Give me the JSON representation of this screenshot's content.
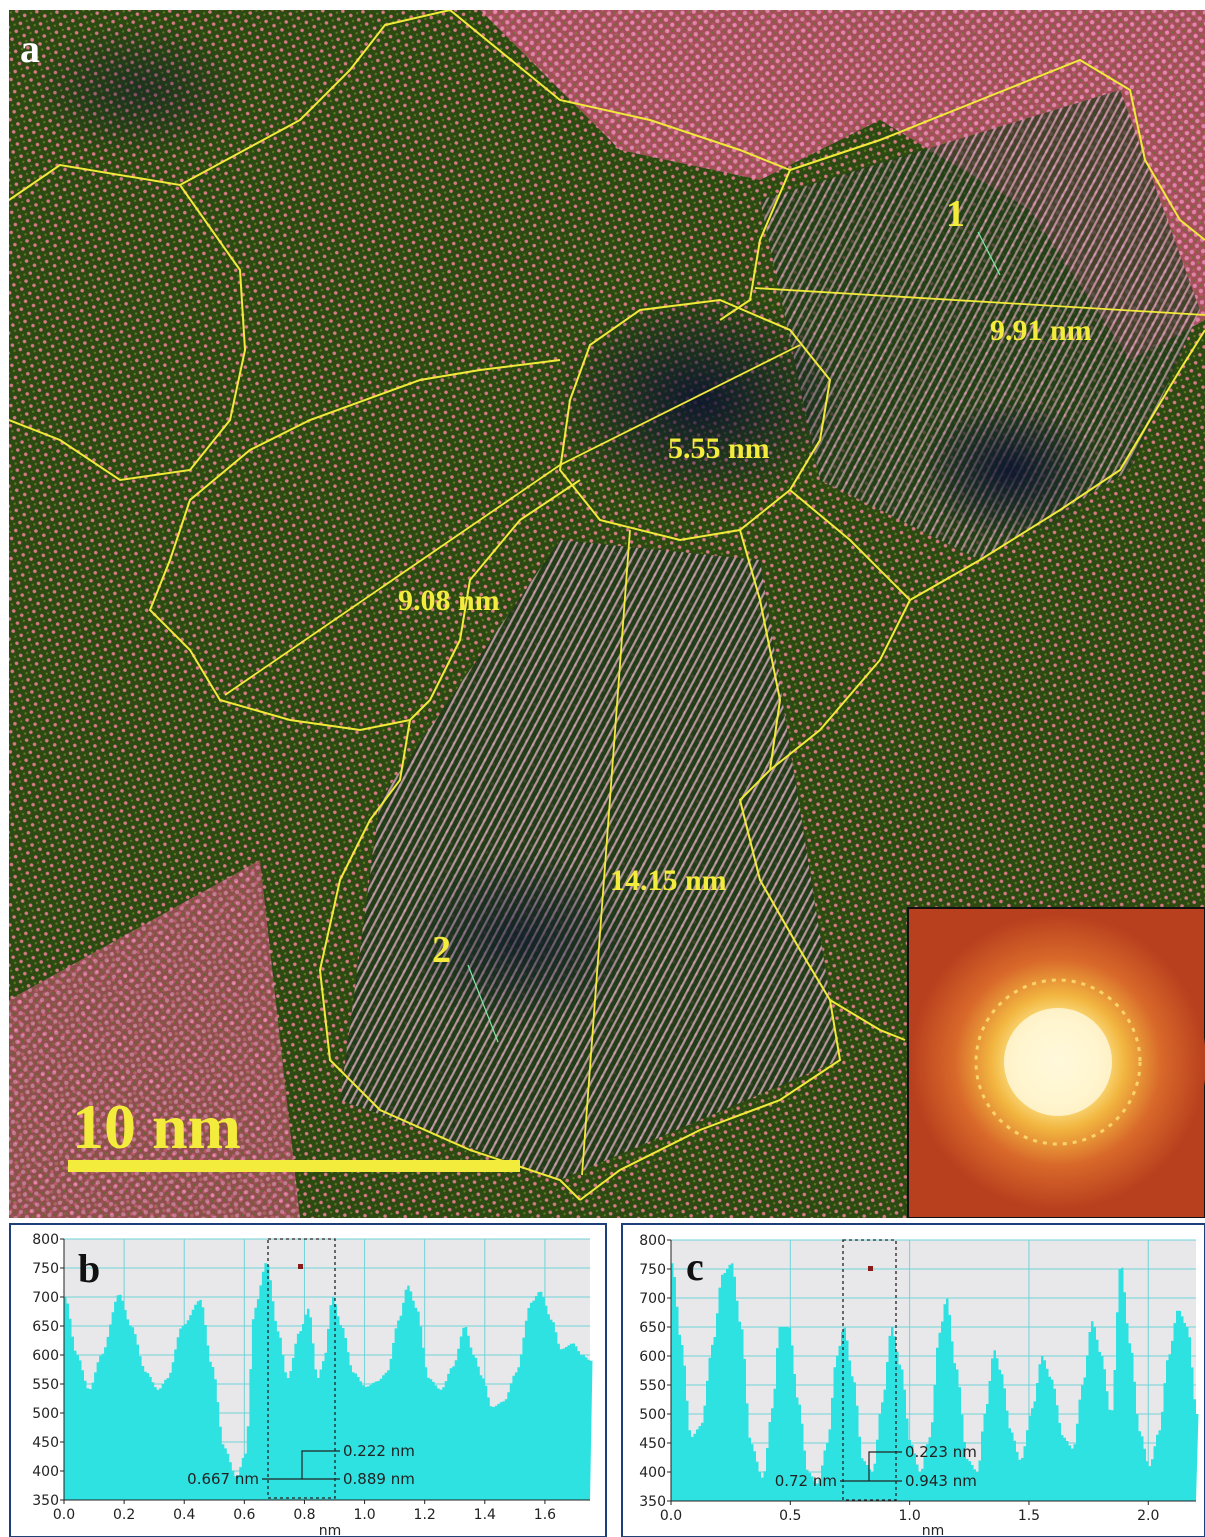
{
  "panel_a": {
    "letter": "a",
    "grains": [
      {
        "label": "1"
      },
      {
        "label": "2"
      }
    ],
    "measurements": [
      "9.91 nm",
      "5.55 nm",
      "9.08 nm",
      "14.15 nm"
    ],
    "scale_bar": "10 nm",
    "colors": {
      "grain_boundary": "#f2ea3a",
      "label": "#f4ec3c",
      "fft_glow": "#fff4b8"
    }
  },
  "chart_data": [
    {
      "type": "area",
      "panel": "b",
      "xlabel": "nm",
      "ylabel": "",
      "xlim": [
        0.0,
        1.75
      ],
      "ylim": [
        350,
        800
      ],
      "x_ticks": [
        "0.0",
        "0.2",
        "0.4",
        "0.6",
        "0.8",
        "1.0",
        "1.2",
        "1.4",
        "1.6"
      ],
      "y_ticks": [
        "800",
        "750",
        "700",
        "650",
        "600",
        "550",
        "500",
        "450",
        "400",
        "350"
      ],
      "series_color": "#2ee2e2",
      "profile": [
        [
          0.0,
          700
        ],
        [
          0.04,
          600
        ],
        [
          0.08,
          540
        ],
        [
          0.12,
          600
        ],
        [
          0.18,
          705
        ],
        [
          0.22,
          650
        ],
        [
          0.27,
          570
        ],
        [
          0.31,
          540
        ],
        [
          0.34,
          560
        ],
        [
          0.39,
          650
        ],
        [
          0.45,
          695
        ],
        [
          0.49,
          580
        ],
        [
          0.53,
          440
        ],
        [
          0.57,
          390
        ],
        [
          0.6,
          430
        ],
        [
          0.63,
          680
        ],
        [
          0.67,
          760
        ],
        [
          0.71,
          640
        ],
        [
          0.74,
          560
        ],
        [
          0.78,
          640
        ],
        [
          0.81,
          680
        ],
        [
          0.84,
          560
        ],
        [
          0.86,
          590
        ],
        [
          0.89,
          700
        ],
        [
          0.92,
          650
        ],
        [
          0.96,
          570
        ],
        [
          1.0,
          545
        ],
        [
          1.04,
          555
        ],
        [
          1.07,
          570
        ],
        [
          1.11,
          660
        ],
        [
          1.14,
          720
        ],
        [
          1.17,
          680
        ],
        [
          1.21,
          560
        ],
        [
          1.25,
          540
        ],
        [
          1.29,
          580
        ],
        [
          1.33,
          650
        ],
        [
          1.36,
          600
        ],
        [
          1.39,
          560
        ],
        [
          1.42,
          510
        ],
        [
          1.46,
          520
        ],
        [
          1.5,
          570
        ],
        [
          1.55,
          690
        ],
        [
          1.58,
          710
        ],
        [
          1.62,
          660
        ],
        [
          1.65,
          610
        ],
        [
          1.69,
          620
        ],
        [
          1.72,
          600
        ],
        [
          1.75,
          590
        ]
      ],
      "markers": [
        {
          "label": "0.222 nm"
        },
        {
          "label": "0.667 nm"
        },
        {
          "label": "0.889 nm"
        }
      ]
    },
    {
      "type": "area",
      "panel": "c",
      "xlabel": "nm",
      "ylabel": "",
      "xlim": [
        0.0,
        2.2
      ],
      "ylim": [
        350,
        800
      ],
      "x_ticks": [
        "0.0",
        "0.5",
        "1.0",
        "1.5",
        "2.0"
      ],
      "y_ticks": [
        "800",
        "750",
        "700",
        "650",
        "600",
        "550",
        "500",
        "450",
        "400",
        "350"
      ],
      "series_color": "#2ee2e2",
      "profile": [
        [
          0.0,
          760
        ],
        [
          0.04,
          620
        ],
        [
          0.08,
          460
        ],
        [
          0.12,
          480
        ],
        [
          0.17,
          620
        ],
        [
          0.21,
          740
        ],
        [
          0.25,
          760
        ],
        [
          0.29,
          650
        ],
        [
          0.33,
          450
        ],
        [
          0.38,
          390
        ],
        [
          0.42,
          510
        ],
        [
          0.45,
          650
        ],
        [
          0.49,
          650
        ],
        [
          0.53,
          520
        ],
        [
          0.57,
          400
        ],
        [
          0.61,
          380
        ],
        [
          0.65,
          450
        ],
        [
          0.69,
          600
        ],
        [
          0.72,
          650
        ],
        [
          0.76,
          560
        ],
        [
          0.8,
          420
        ],
        [
          0.84,
          400
        ],
        [
          0.88,
          520
        ],
        [
          0.92,
          650
        ],
        [
          0.96,
          580
        ],
        [
          1.0,
          450
        ],
        [
          1.04,
          400
        ],
        [
          1.08,
          460
        ],
        [
          1.12,
          640
        ],
        [
          1.15,
          700
        ],
        [
          1.19,
          580
        ],
        [
          1.24,
          420
        ],
        [
          1.28,
          400
        ],
        [
          1.31,
          500
        ],
        [
          1.35,
          610
        ],
        [
          1.38,
          570
        ],
        [
          1.42,
          470
        ],
        [
          1.46,
          420
        ],
        [
          1.51,
          510
        ],
        [
          1.55,
          600
        ],
        [
          1.59,
          560
        ],
        [
          1.64,
          460
        ],
        [
          1.68,
          440
        ],
        [
          1.72,
          550
        ],
        [
          1.76,
          660
        ],
        [
          1.8,
          600
        ],
        [
          1.84,
          500
        ],
        [
          1.88,
          760
        ],
        [
          1.92,
          620
        ],
        [
          1.96,
          470
        ],
        [
          2.0,
          410
        ],
        [
          2.04,
          470
        ],
        [
          2.08,
          600
        ],
        [
          2.12,
          680
        ],
        [
          2.16,
          650
        ],
        [
          2.2,
          500
        ]
      ],
      "markers": [
        {
          "label": "0.223 nm"
        },
        {
          "label": "0.72 nm"
        },
        {
          "label": "0.943 nm"
        }
      ]
    }
  ]
}
